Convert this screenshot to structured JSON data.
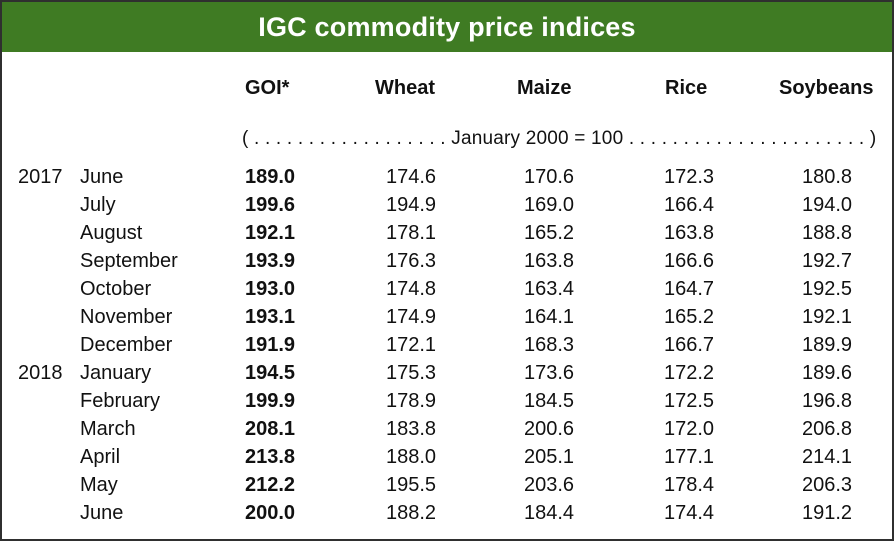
{
  "table": {
    "title": "IGC commodity price indices",
    "headers": {
      "goi": "GOI*",
      "wheat": "Wheat",
      "maize": "Maize",
      "rice": "Rice",
      "soybeans": "Soybeans"
    },
    "unit_note": "( . . . . . . . . . . . . . . . . . . January 2000 = 100 . . . . . . . . . . . . . . . . . . . . . . )",
    "rows": [
      {
        "year": "2017",
        "month": "June",
        "goi": "189.0",
        "wheat": "174.6",
        "maize": "170.6",
        "rice": "172.3",
        "soybeans": "180.8"
      },
      {
        "year": "",
        "month": "July",
        "goi": "199.6",
        "wheat": "194.9",
        "maize": "169.0",
        "rice": "166.4",
        "soybeans": "194.0"
      },
      {
        "year": "",
        "month": "August",
        "goi": "192.1",
        "wheat": "178.1",
        "maize": "165.2",
        "rice": "163.8",
        "soybeans": "188.8"
      },
      {
        "year": "",
        "month": "September",
        "goi": "193.9",
        "wheat": "176.3",
        "maize": "163.8",
        "rice": "166.6",
        "soybeans": "192.7"
      },
      {
        "year": "",
        "month": "October",
        "goi": "193.0",
        "wheat": "174.8",
        "maize": "163.4",
        "rice": "164.7",
        "soybeans": "192.5"
      },
      {
        "year": "",
        "month": "November",
        "goi": "193.1",
        "wheat": "174.9",
        "maize": "164.1",
        "rice": "165.2",
        "soybeans": "192.1"
      },
      {
        "year": "",
        "month": "December",
        "goi": "191.9",
        "wheat": "172.1",
        "maize": "168.3",
        "rice": "166.7",
        "soybeans": "189.9"
      },
      {
        "year": "2018",
        "month": "January",
        "goi": "194.5",
        "wheat": "175.3",
        "maize": "173.6",
        "rice": "172.2",
        "soybeans": "189.6"
      },
      {
        "year": "",
        "month": "February",
        "goi": "199.9",
        "wheat": "178.9",
        "maize": "184.5",
        "rice": "172.5",
        "soybeans": "196.8"
      },
      {
        "year": "",
        "month": "March",
        "goi": "208.1",
        "wheat": "183.8",
        "maize": "200.6",
        "rice": "172.0",
        "soybeans": "206.8"
      },
      {
        "year": "",
        "month": "April",
        "goi": "213.8",
        "wheat": "188.0",
        "maize": "205.1",
        "rice": "177.1",
        "soybeans": "214.1"
      },
      {
        "year": "",
        "month": "May",
        "goi": "212.2",
        "wheat": "195.5",
        "maize": "203.6",
        "rice": "178.4",
        "soybeans": "206.3"
      },
      {
        "year": "",
        "month": "June",
        "goi": "200.0",
        "wheat": "188.2",
        "maize": "184.4",
        "rice": "174.4",
        "soybeans": "191.2"
      }
    ]
  },
  "colors": {
    "title_background": "#3f7b23",
    "title_text": "#ffffff",
    "border": "#2f2f2f",
    "text": "#111111"
  }
}
